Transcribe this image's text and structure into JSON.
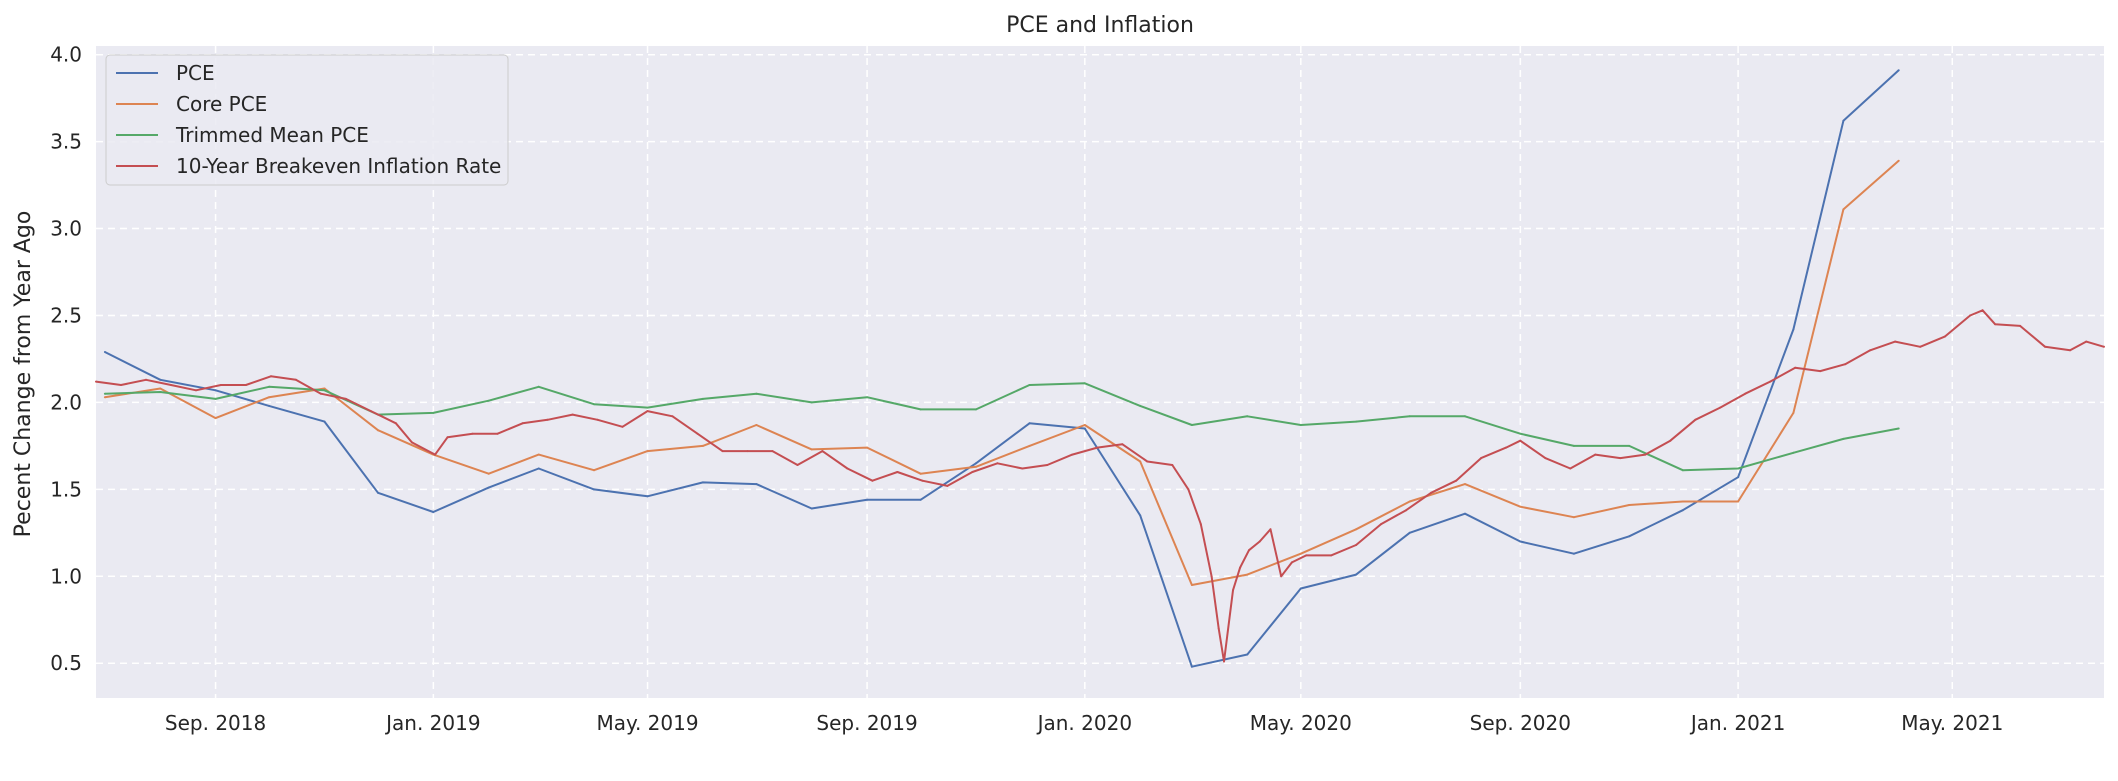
{
  "chart_data": {
    "type": "line",
    "title": "PCE and Inflation",
    "xlabel": "",
    "ylabel": "Pecent Change from Year Ago",
    "ylim": [
      0.3,
      4.05
    ],
    "xlim": [
      "2018-06-26",
      "2021-07-25"
    ],
    "grid": true,
    "grid_style": "dashed",
    "background": "#eaeaf2",
    "legend_position": "top-left",
    "yticks": [
      0.5,
      1.0,
      1.5,
      2.0,
      2.5,
      3.0,
      3.5,
      4.0
    ],
    "xticks": [
      {
        "date": "2018-09-01",
        "label": "Sep. 2018"
      },
      {
        "date": "2019-01-01",
        "label": "Jan. 2019"
      },
      {
        "date": "2019-05-01",
        "label": "May. 2019"
      },
      {
        "date": "2019-09-01",
        "label": "Sep. 2019"
      },
      {
        "date": "2020-01-01",
        "label": "Jan. 2020"
      },
      {
        "date": "2020-05-01",
        "label": "May. 2020"
      },
      {
        "date": "2020-09-01",
        "label": "Sep. 2020"
      },
      {
        "date": "2021-01-01",
        "label": "Jan. 2021"
      },
      {
        "date": "2021-05-01",
        "label": "May. 2021"
      }
    ],
    "series": [
      {
        "name": "PCE",
        "color": "#4c72b0",
        "points": [
          [
            "2018-07-01",
            2.29
          ],
          [
            "2018-08-01",
            2.13
          ],
          [
            "2018-09-01",
            2.07
          ],
          [
            "2018-10-01",
            1.98
          ],
          [
            "2018-11-01",
            1.89
          ],
          [
            "2018-12-01",
            1.48
          ],
          [
            "2019-01-01",
            1.37
          ],
          [
            "2019-02-01",
            1.51
          ],
          [
            "2019-03-01",
            1.62
          ],
          [
            "2019-04-01",
            1.5
          ],
          [
            "2019-05-01",
            1.46
          ],
          [
            "2019-06-01",
            1.54
          ],
          [
            "2019-07-01",
            1.53
          ],
          [
            "2019-08-01",
            1.39
          ],
          [
            "2019-09-01",
            1.44
          ],
          [
            "2019-10-01",
            1.44
          ],
          [
            "2019-11-01",
            1.65
          ],
          [
            "2019-12-01",
            1.88
          ],
          [
            "2020-01-01",
            1.85
          ],
          [
            "2020-02-01",
            1.35
          ],
          [
            "2020-03-01",
            0.48
          ],
          [
            "2020-04-01",
            0.55
          ],
          [
            "2020-05-01",
            0.93
          ],
          [
            "2020-06-01",
            1.01
          ],
          [
            "2020-07-01",
            1.25
          ],
          [
            "2020-08-01",
            1.36
          ],
          [
            "2020-09-01",
            1.2
          ],
          [
            "2020-10-01",
            1.13
          ],
          [
            "2020-11-01",
            1.23
          ],
          [
            "2020-12-01",
            1.38
          ],
          [
            "2021-01-01",
            1.57
          ],
          [
            "2021-02-01",
            2.42
          ],
          [
            "2021-03-01",
            3.62
          ],
          [
            "2021-04-01",
            3.91
          ]
        ]
      },
      {
        "name": "Core PCE",
        "color": "#dd8452",
        "points": [
          [
            "2018-07-01",
            2.03
          ],
          [
            "2018-08-01",
            2.08
          ],
          [
            "2018-09-01",
            1.91
          ],
          [
            "2018-10-01",
            2.03
          ],
          [
            "2018-11-01",
            2.08
          ],
          [
            "2018-12-01",
            1.84
          ],
          [
            "2019-01-01",
            1.7
          ],
          [
            "2019-02-01",
            1.59
          ],
          [
            "2019-03-01",
            1.7
          ],
          [
            "2019-04-01",
            1.61
          ],
          [
            "2019-05-01",
            1.72
          ],
          [
            "2019-06-01",
            1.75
          ],
          [
            "2019-07-01",
            1.87
          ],
          [
            "2019-08-01",
            1.73
          ],
          [
            "2019-09-01",
            1.74
          ],
          [
            "2019-10-01",
            1.59
          ],
          [
            "2019-11-01",
            1.63
          ],
          [
            "2019-12-01",
            1.75
          ],
          [
            "2020-01-01",
            1.87
          ],
          [
            "2020-02-01",
            1.66
          ],
          [
            "2020-03-01",
            0.95
          ],
          [
            "2020-04-01",
            1.01
          ],
          [
            "2020-05-01",
            1.13
          ],
          [
            "2020-06-01",
            1.27
          ],
          [
            "2020-07-01",
            1.43
          ],
          [
            "2020-08-01",
            1.53
          ],
          [
            "2020-09-01",
            1.4
          ],
          [
            "2020-10-01",
            1.34
          ],
          [
            "2020-11-01",
            1.41
          ],
          [
            "2020-12-01",
            1.43
          ],
          [
            "2021-01-01",
            1.43
          ],
          [
            "2021-02-01",
            1.94
          ],
          [
            "2021-03-01",
            3.11
          ],
          [
            "2021-04-01",
            3.39
          ]
        ]
      },
      {
        "name": "Trimmed Mean PCE",
        "color": "#55a868",
        "points": [
          [
            "2018-07-01",
            2.05
          ],
          [
            "2018-08-01",
            2.06
          ],
          [
            "2018-09-01",
            2.02
          ],
          [
            "2018-10-01",
            2.09
          ],
          [
            "2018-11-01",
            2.07
          ],
          [
            "2018-12-01",
            1.93
          ],
          [
            "2019-01-01",
            1.94
          ],
          [
            "2019-02-01",
            2.01
          ],
          [
            "2019-03-01",
            2.09
          ],
          [
            "2019-04-01",
            1.99
          ],
          [
            "2019-05-01",
            1.97
          ],
          [
            "2019-06-01",
            2.02
          ],
          [
            "2019-07-01",
            2.05
          ],
          [
            "2019-08-01",
            2.0
          ],
          [
            "2019-09-01",
            2.03
          ],
          [
            "2019-10-01",
            1.96
          ],
          [
            "2019-11-01",
            1.96
          ],
          [
            "2019-12-01",
            2.1
          ],
          [
            "2020-01-01",
            2.11
          ],
          [
            "2020-02-01",
            1.98
          ],
          [
            "2020-03-01",
            1.87
          ],
          [
            "2020-04-01",
            1.92
          ],
          [
            "2020-05-01",
            1.87
          ],
          [
            "2020-06-01",
            1.89
          ],
          [
            "2020-07-01",
            1.92
          ],
          [
            "2020-08-01",
            1.92
          ],
          [
            "2020-09-01",
            1.82
          ],
          [
            "2020-10-01",
            1.75
          ],
          [
            "2020-11-01",
            1.75
          ],
          [
            "2020-12-01",
            1.61
          ],
          [
            "2021-01-01",
            1.62
          ],
          [
            "2021-02-01",
            1.71
          ],
          [
            "2021-03-01",
            1.79
          ],
          [
            "2021-04-01",
            1.85
          ]
        ]
      },
      {
        "name": "10-Year Breakeven Inflation Rate",
        "color": "#c44e52",
        "points": [
          [
            "2018-06-26",
            2.12
          ],
          [
            "2018-07-10",
            2.1
          ],
          [
            "2018-07-24",
            2.13
          ],
          [
            "2018-08-07",
            2.1
          ],
          [
            "2018-08-21",
            2.07
          ],
          [
            "2018-09-04",
            2.1
          ],
          [
            "2018-09-18",
            2.1
          ],
          [
            "2018-10-02",
            2.15
          ],
          [
            "2018-10-16",
            2.13
          ],
          [
            "2018-10-30",
            2.05
          ],
          [
            "2018-11-13",
            2.02
          ],
          [
            "2018-11-27",
            1.95
          ],
          [
            "2018-12-11",
            1.88
          ],
          [
            "2018-12-20",
            1.77
          ],
          [
            "2019-01-02",
            1.7
          ],
          [
            "2019-01-09",
            1.8
          ],
          [
            "2019-01-23",
            1.82
          ],
          [
            "2019-02-06",
            1.82
          ],
          [
            "2019-02-20",
            1.88
          ],
          [
            "2019-03-06",
            1.9
          ],
          [
            "2019-03-20",
            1.93
          ],
          [
            "2019-04-03",
            1.9
          ],
          [
            "2019-04-17",
            1.86
          ],
          [
            "2019-05-01",
            1.95
          ],
          [
            "2019-05-15",
            1.92
          ],
          [
            "2019-05-29",
            1.82
          ],
          [
            "2019-06-12",
            1.72
          ],
          [
            "2019-06-26",
            1.72
          ],
          [
            "2019-07-10",
            1.72
          ],
          [
            "2019-07-24",
            1.64
          ],
          [
            "2019-08-07",
            1.72
          ],
          [
            "2019-08-21",
            1.62
          ],
          [
            "2019-09-04",
            1.55
          ],
          [
            "2019-09-18",
            1.6
          ],
          [
            "2019-10-02",
            1.55
          ],
          [
            "2019-10-16",
            1.52
          ],
          [
            "2019-10-30",
            1.6
          ],
          [
            "2019-11-13",
            1.65
          ],
          [
            "2019-11-27",
            1.62
          ],
          [
            "2019-12-11",
            1.64
          ],
          [
            "2019-12-25",
            1.7
          ],
          [
            "2020-01-08",
            1.74
          ],
          [
            "2020-01-22",
            1.76
          ],
          [
            "2020-02-05",
            1.66
          ],
          [
            "2020-02-19",
            1.64
          ],
          [
            "2020-02-28",
            1.5
          ],
          [
            "2020-03-06",
            1.3
          ],
          [
            "2020-03-12",
            1.0
          ],
          [
            "2020-03-16",
            0.7
          ],
          [
            "2020-03-19",
            0.51
          ],
          [
            "2020-03-24",
            0.92
          ],
          [
            "2020-03-28",
            1.05
          ],
          [
            "2020-04-02",
            1.15
          ],
          [
            "2020-04-08",
            1.2
          ],
          [
            "2020-04-14",
            1.27
          ],
          [
            "2020-04-20",
            1.0
          ],
          [
            "2020-04-26",
            1.08
          ],
          [
            "2020-05-04",
            1.12
          ],
          [
            "2020-05-18",
            1.12
          ],
          [
            "2020-06-01",
            1.18
          ],
          [
            "2020-06-15",
            1.3
          ],
          [
            "2020-06-29",
            1.38
          ],
          [
            "2020-07-13",
            1.48
          ],
          [
            "2020-07-27",
            1.55
          ],
          [
            "2020-08-10",
            1.68
          ],
          [
            "2020-08-24",
            1.74
          ],
          [
            "2020-09-01",
            1.78
          ],
          [
            "2020-09-15",
            1.68
          ],
          [
            "2020-09-29",
            1.62
          ],
          [
            "2020-10-13",
            1.7
          ],
          [
            "2020-10-27",
            1.68
          ],
          [
            "2020-11-10",
            1.7
          ],
          [
            "2020-11-24",
            1.78
          ],
          [
            "2020-12-08",
            1.9
          ],
          [
            "2020-12-22",
            1.97
          ],
          [
            "2021-01-05",
            2.05
          ],
          [
            "2021-01-19",
            2.12
          ],
          [
            "2021-02-02",
            2.2
          ],
          [
            "2021-02-16",
            2.18
          ],
          [
            "2021-03-02",
            2.22
          ],
          [
            "2021-03-16",
            2.3
          ],
          [
            "2021-03-30",
            2.35
          ],
          [
            "2021-04-13",
            2.32
          ],
          [
            "2021-04-27",
            2.38
          ],
          [
            "2021-05-11",
            2.5
          ],
          [
            "2021-05-18",
            2.53
          ],
          [
            "2021-05-25",
            2.45
          ],
          [
            "2021-06-08",
            2.44
          ],
          [
            "2021-06-22",
            2.32
          ],
          [
            "2021-07-06",
            2.3
          ],
          [
            "2021-07-15",
            2.35
          ],
          [
            "2021-07-25",
            2.32
          ]
        ]
      }
    ]
  }
}
